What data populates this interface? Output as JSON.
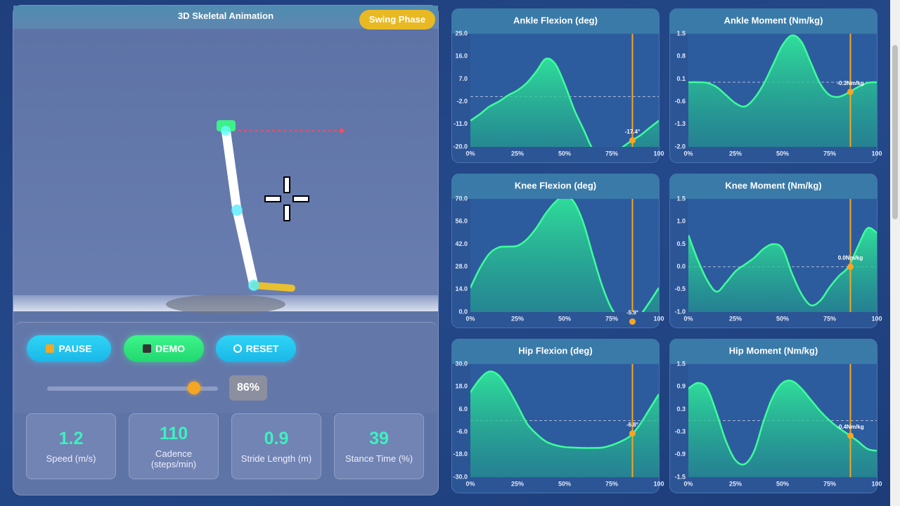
{
  "animation": {
    "title": "3D Skeletal Animation",
    "phase": "Swing Phase"
  },
  "controls": {
    "buttons": [
      "PAUSE",
      "DEMO",
      "RESET"
    ],
    "slider": {
      "value": 86,
      "label": "86%"
    }
  },
  "stats": [
    {
      "value": 1.2,
      "label": "Speed (m/s)"
    },
    {
      "value": 110,
      "label": "Cadence (steps/min)"
    },
    {
      "value": 0.9,
      "label": "Stride Length (m)"
    },
    {
      "value": 39,
      "label": "Stance Time (%)"
    }
  ],
  "chart_data": [
    {
      "type": "line",
      "title": "Ankle Flexion (deg)",
      "x": [
        0,
        5,
        10,
        15,
        20,
        25,
        30,
        35,
        40,
        45,
        50,
        55,
        60,
        65,
        70,
        75,
        80,
        85,
        90,
        95,
        100
      ],
      "series": [
        {
          "name": "Ankle Flexion",
          "color": "#3dff9a",
          "values": [
            -9.6,
            -7,
            -4,
            -2,
            0.5,
            2.5,
            5.5,
            10,
            15,
            13,
            5,
            -5,
            -13,
            -21,
            -24.5,
            -23,
            -20.5,
            -17.8,
            -15.5,
            -12.5,
            -9.6
          ]
        }
      ],
      "xlim": [
        0,
        100
      ],
      "ylim": [
        -20,
        25
      ],
      "xticks": [
        {
          "value": 0,
          "label": "0%"
        },
        {
          "value": 25,
          "label": "25%"
        },
        {
          "value": 50,
          "label": "50%"
        },
        {
          "value": 75,
          "label": "75%"
        },
        {
          "value": 100,
          "label": "100"
        }
      ],
      "yticks": [
        {
          "value": 25,
          "label": "25.0"
        },
        {
          "value": 16,
          "label": "16.0"
        },
        {
          "value": 7,
          "label": "7.0"
        },
        {
          "value": -2,
          "label": "-2.0"
        },
        {
          "value": -11,
          "label": "-11.0"
        },
        {
          "value": -20,
          "label": "-20.0"
        }
      ],
      "reference_line": 0,
      "marker": {
        "x": 86,
        "value": -17.4,
        "label": "-17.4°",
        "color": "#f5a623"
      }
    },
    {
      "type": "line",
      "title": "Ankle Moment (Nm/kg)",
      "x": [
        0,
        5,
        10,
        15,
        20,
        25,
        30,
        35,
        40,
        45,
        50,
        55,
        60,
        65,
        70,
        75,
        80,
        85,
        90,
        95,
        100
      ],
      "series": [
        {
          "name": "Ankle Moment",
          "color": "#3dff9a",
          "values": [
            0,
            0,
            -0.02,
            -0.15,
            -0.4,
            -0.65,
            -0.75,
            -0.5,
            -0.05,
            0.55,
            1.15,
            1.45,
            1.25,
            0.6,
            -0.05,
            -0.4,
            -0.45,
            -0.32,
            -0.15,
            -0.02,
            0
          ]
        }
      ],
      "xlim": [
        0,
        100
      ],
      "ylim": [
        -2,
        1.5
      ],
      "xticks": [
        {
          "value": 0,
          "label": "0%"
        },
        {
          "value": 25,
          "label": "25%"
        },
        {
          "value": 50,
          "label": "50%"
        },
        {
          "value": 75,
          "label": "75%"
        },
        {
          "value": 100,
          "label": "100"
        }
      ],
      "yticks": [
        {
          "value": 1.5,
          "label": "1.5"
        },
        {
          "value": 0.8,
          "label": "0.8"
        },
        {
          "value": 0.1,
          "label": "0.1"
        },
        {
          "value": -0.6,
          "label": "-0.6"
        },
        {
          "value": -1.3,
          "label": "-1.3"
        },
        {
          "value": -2,
          "label": "-2.0"
        }
      ],
      "reference_line": 0,
      "marker": {
        "x": 86,
        "value": -0.3,
        "label": "-0.3Nm/kg",
        "color": "#f5a623"
      }
    },
    {
      "type": "line",
      "title": "Knee Flexion (deg)",
      "x": [
        0,
        5,
        10,
        15,
        20,
        25,
        30,
        35,
        40,
        45,
        50,
        55,
        60,
        65,
        70,
        75,
        80,
        85,
        90,
        95,
        100
      ],
      "series": [
        {
          "name": "Knee Flexion",
          "color": "#3dff9a",
          "values": [
            15,
            27,
            36,
            40,
            40.5,
            41,
            45,
            52,
            61,
            68,
            72,
            68,
            55,
            35,
            16,
            2,
            -5,
            -6,
            -2,
            6,
            15
          ]
        }
      ],
      "xlim": [
        0,
        100
      ],
      "ylim": [
        0,
        70
      ],
      "xticks": [
        {
          "value": 0,
          "label": "0%"
        },
        {
          "value": 25,
          "label": "25%"
        },
        {
          "value": 50,
          "label": "50%"
        },
        {
          "value": 75,
          "label": "75%"
        },
        {
          "value": 100,
          "label": "100"
        }
      ],
      "yticks": [
        {
          "value": 70,
          "label": "70.0"
        },
        {
          "value": 56,
          "label": "56.0"
        },
        {
          "value": 42,
          "label": "42.0"
        },
        {
          "value": 28,
          "label": "28.0"
        },
        {
          "value": 14,
          "label": "14.0"
        },
        {
          "value": 0,
          "label": "0.0"
        }
      ],
      "marker": {
        "x": 86,
        "value": -5.9,
        "label": "-5.9°",
        "color": "#f5a623"
      }
    },
    {
      "type": "line",
      "title": "Knee Moment (Nm/kg)",
      "x": [
        0,
        5,
        10,
        15,
        20,
        25,
        30,
        35,
        40,
        45,
        50,
        55,
        60,
        65,
        70,
        75,
        80,
        85,
        90,
        95,
        100
      ],
      "series": [
        {
          "name": "Knee Moment",
          "color": "#3dff9a",
          "values": [
            0.7,
            0.15,
            -0.3,
            -0.55,
            -0.35,
            -0.1,
            0.05,
            0.2,
            0.4,
            0.5,
            0.4,
            -0.15,
            -0.6,
            -0.85,
            -0.75,
            -0.45,
            -0.2,
            0,
            0.45,
            0.85,
            0.75
          ]
        }
      ],
      "xlim": [
        0,
        100
      ],
      "ylim": [
        -1,
        1.5
      ],
      "xticks": [
        {
          "value": 0,
          "label": "0%"
        },
        {
          "value": 25,
          "label": "25%"
        },
        {
          "value": 50,
          "label": "50%"
        },
        {
          "value": 75,
          "label": "75%"
        },
        {
          "value": 100,
          "label": "100"
        }
      ],
      "yticks": [
        {
          "value": 1.5,
          "label": "1.5"
        },
        {
          "value": 1,
          "label": "1.0"
        },
        {
          "value": 0.5,
          "label": "0.5"
        },
        {
          "value": 0,
          "label": "0.0"
        },
        {
          "value": -0.5,
          "label": "-0.5"
        },
        {
          "value": -1,
          "label": "-1.0"
        }
      ],
      "reference_line": 0,
      "marker": {
        "x": 86,
        "value": 0,
        "label": "0.0Nm/kg",
        "color": "#f5a623"
      }
    },
    {
      "type": "line",
      "title": "Hip Flexion (deg)",
      "x": [
        0,
        5,
        10,
        15,
        20,
        25,
        30,
        35,
        40,
        45,
        50,
        55,
        60,
        65,
        70,
        75,
        80,
        85,
        90,
        95,
        100
      ],
      "series": [
        {
          "name": "Hip Flexion",
          "color": "#3dff9a",
          "values": [
            15,
            22,
            26,
            24,
            17,
            8,
            -1.5,
            -7,
            -11,
            -13,
            -14,
            -14.3,
            -14.5,
            -14.5,
            -14.3,
            -13,
            -11,
            -8,
            -2,
            6,
            14
          ]
        }
      ],
      "xlim": [
        0,
        100
      ],
      "ylim": [
        -30,
        30
      ],
      "xticks": [
        {
          "value": 0,
          "label": "0%"
        },
        {
          "value": 25,
          "label": "25%"
        },
        {
          "value": 50,
          "label": "50%"
        },
        {
          "value": 75,
          "label": "75%"
        },
        {
          "value": 100,
          "label": "100"
        }
      ],
      "yticks": [
        {
          "value": 30,
          "label": "30.0"
        },
        {
          "value": 18,
          "label": "18.0"
        },
        {
          "value": 6,
          "label": "6.0"
        },
        {
          "value": -6,
          "label": "-6.0"
        },
        {
          "value": -18,
          "label": "-18.0"
        },
        {
          "value": -30,
          "label": "-30.0"
        }
      ],
      "reference_line": 0,
      "marker": {
        "x": 86,
        "value": -6.8,
        "label": "-6.8°",
        "color": "#f5a623"
      }
    },
    {
      "type": "line",
      "title": "Hip Moment (Nm/kg)",
      "x": [
        0,
        5,
        10,
        15,
        20,
        25,
        30,
        35,
        40,
        45,
        50,
        55,
        60,
        65,
        70,
        75,
        80,
        85,
        90,
        95,
        100
      ],
      "series": [
        {
          "name": "Hip Moment",
          "color": "#3dff9a",
          "values": [
            0.85,
            1,
            0.85,
            0.2,
            -0.55,
            -1.05,
            -1.15,
            -0.8,
            0,
            0.65,
            1,
            1.05,
            0.85,
            0.55,
            0.25,
            0,
            -0.2,
            -0.37,
            -0.55,
            -0.75,
            -0.8
          ]
        }
      ],
      "xlim": [
        0,
        100
      ],
      "ylim": [
        -1.5,
        1.5
      ],
      "xticks": [
        {
          "value": 0,
          "label": "0%"
        },
        {
          "value": 25,
          "label": "25%"
        },
        {
          "value": 50,
          "label": "50%"
        },
        {
          "value": 75,
          "label": "75%"
        },
        {
          "value": 100,
          "label": "100"
        }
      ],
      "yticks": [
        {
          "value": 1.5,
          "label": "1.5"
        },
        {
          "value": 0.9,
          "label": "0.9"
        },
        {
          "value": 0.3,
          "label": "0.3"
        },
        {
          "value": -0.3,
          "label": "-0.3"
        },
        {
          "value": -0.9,
          "label": "-0.9"
        },
        {
          "value": -1.5,
          "label": "-1.5"
        }
      ],
      "reference_line": 0,
      "marker": {
        "x": 86,
        "value": -0.4,
        "label": "-0.4Nm/kg",
        "color": "#f5a623"
      }
    }
  ]
}
